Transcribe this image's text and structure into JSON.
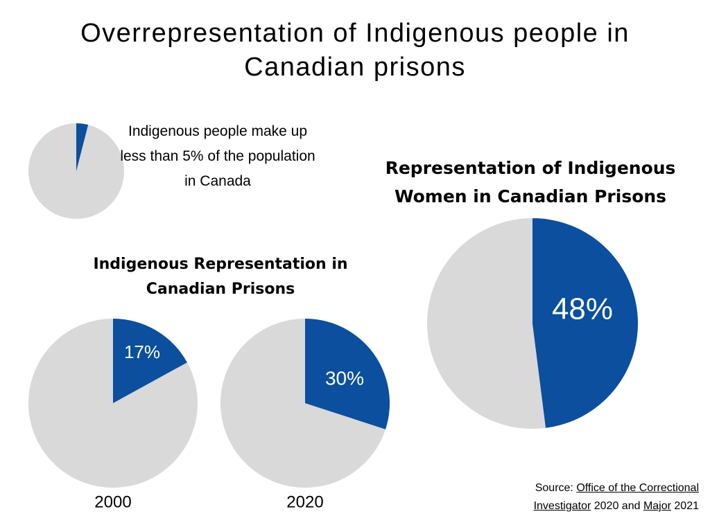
{
  "title": "Overrepresentation of Indigenous people in Canadian prisons",
  "chart_data": [
    {
      "type": "pie",
      "values": [
        4
      ],
      "color": "#0b4f9e",
      "rest_color": "#d9d9d9",
      "annotation": "Indigenous people make up less than 5% of the population in Canada"
    },
    {
      "type": "pie",
      "title": "Indigenous Representation in Canadian Prisons",
      "categories": [
        "2000",
        "2020"
      ],
      "values": [
        17,
        30
      ],
      "value_labels": [
        "17%",
        "30%"
      ],
      "color": "#0b4f9e",
      "rest_color": "#d9d9d9"
    },
    {
      "type": "pie",
      "title": "Representation of Indigenous Women in Canadian Prisons",
      "values": [
        48
      ],
      "value_labels": [
        "48%"
      ],
      "color": "#0b4f9e",
      "rest_color": "#d9d9d9"
    }
  ],
  "source": {
    "prefix": "Source:",
    "link1": "Office of the Correctional Investigator",
    "middle": "2020 and",
    "link2": "Major",
    "suffix": "2021"
  }
}
